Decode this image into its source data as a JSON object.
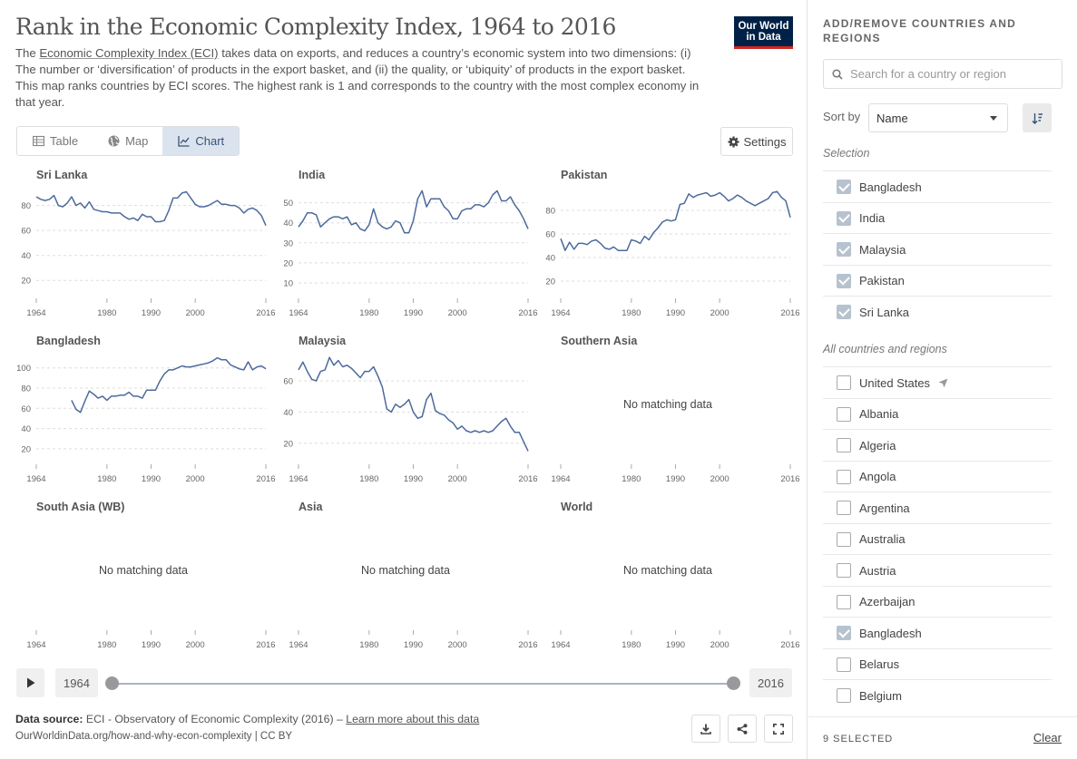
{
  "header": {
    "title": "Rank in the Economic Complexity Index, 1964 to 2016",
    "subtitle_pre": "The ",
    "subtitle_link": "Economic Complexity Index (ECI)",
    "subtitle_post": " takes data on exports, and reduces a country’s economic system into two dimensions: (i) The number or ‘diversification’ of products in the export basket, and (ii) the quality, or ‘ubiquity’ of products in the export basket. This map ranks countries by ECI scores. The highest rank is 1 and corresponds to the country with the most complex economy in that year.",
    "logo_line1": "Our World",
    "logo_line2": "in Data"
  },
  "tabs": [
    {
      "label": "Table",
      "icon": "table-icon",
      "active": false
    },
    {
      "label": "Map",
      "icon": "globe-icon",
      "active": false
    },
    {
      "label": "Chart",
      "icon": "line-chart-icon",
      "active": true
    }
  ],
  "settings_label": "Settings",
  "colors": {
    "line": "#4c6a9c",
    "accent": "#ce261e",
    "brand": "#002147"
  },
  "no_data_label": "No matching data",
  "chart_data": [
    {
      "type": "line",
      "title": "Sri Lanka",
      "yticks": [
        20,
        40,
        60,
        80
      ],
      "ylim": [
        10,
        95
      ],
      "xticks": [
        "1964",
        "1980",
        "1990",
        "2000",
        "2016"
      ],
      "xlim": [
        1964,
        2016
      ],
      "x": [
        1964,
        1965,
        1966,
        1967,
        1968,
        1969,
        1970,
        1971,
        1972,
        1973,
        1974,
        1975,
        1976,
        1977,
        1978,
        1979,
        1980,
        1981,
        1982,
        1983,
        1984,
        1985,
        1986,
        1987,
        1988,
        1989,
        1990,
        1991,
        1992,
        1993,
        1994,
        1995,
        1996,
        1997,
        1998,
        1999,
        2000,
        2001,
        2002,
        2003,
        2004,
        2005,
        2006,
        2007,
        2008,
        2009,
        2010,
        2011,
        2012,
        2013,
        2014,
        2015,
        2016
      ],
      "y": [
        87,
        85,
        84,
        85,
        88,
        80,
        79,
        82,
        87,
        80,
        82,
        78,
        83,
        77,
        76,
        75,
        75,
        74,
        74,
        74,
        71,
        69,
        70,
        68,
        73,
        71,
        71,
        67,
        67,
        68,
        76,
        86,
        86,
        90,
        91,
        86,
        81,
        79,
        79,
        80,
        82,
        84,
        81,
        81,
        80,
        80,
        78,
        74,
        77,
        78,
        76,
        72,
        64
      ]
    },
    {
      "type": "line",
      "title": "India",
      "yticks": [
        10,
        20,
        30,
        40,
        50
      ],
      "ylim": [
        5,
        58
      ],
      "xticks": [
        "1964",
        "1980",
        "1990",
        "2000",
        "2016"
      ],
      "xlim": [
        1964,
        2016
      ],
      "x": [
        1964,
        1965,
        1966,
        1967,
        1968,
        1969,
        1970,
        1971,
        1972,
        1973,
        1974,
        1975,
        1976,
        1977,
        1978,
        1979,
        1980,
        1981,
        1982,
        1983,
        1984,
        1985,
        1986,
        1987,
        1988,
        1989,
        1990,
        1991,
        1992,
        1993,
        1994,
        1995,
        1996,
        1997,
        1998,
        1999,
        2000,
        2001,
        2002,
        2003,
        2004,
        2005,
        2006,
        2007,
        2008,
        2009,
        2010,
        2011,
        2012,
        2013,
        2014,
        2015,
        2016
      ],
      "y": [
        38,
        41,
        45,
        45,
        44,
        38,
        40,
        42,
        43,
        43,
        42,
        43,
        39,
        40,
        37,
        36,
        39,
        47,
        40,
        38,
        37,
        38,
        41,
        40,
        35,
        35,
        41,
        52,
        56,
        48,
        52,
        52,
        52,
        48,
        46,
        42,
        42,
        46,
        47,
        47,
        49,
        49,
        48,
        50,
        54,
        56,
        51,
        51,
        53,
        49,
        46,
        42,
        37
      ]
    },
    {
      "type": "line",
      "title": "Pakistan",
      "yticks": [
        20,
        40,
        60,
        80
      ],
      "ylim": [
        10,
        100
      ],
      "xticks": [
        "1964",
        "1980",
        "1990",
        "2000",
        "2016"
      ],
      "xlim": [
        1964,
        2016
      ],
      "x": [
        1964,
        1965,
        1966,
        1967,
        1968,
        1969,
        1970,
        1971,
        1972,
        1973,
        1974,
        1975,
        1976,
        1977,
        1978,
        1979,
        1980,
        1981,
        1982,
        1983,
        1984,
        1985,
        1986,
        1987,
        1988,
        1989,
        1990,
        1991,
        1992,
        1993,
        1994,
        1995,
        1996,
        1997,
        1998,
        1999,
        2000,
        2001,
        2002,
        2003,
        2004,
        2005,
        2006,
        2007,
        2008,
        2009,
        2010,
        2011,
        2012,
        2013,
        2014,
        2015,
        2016
      ],
      "y": [
        56,
        46,
        53,
        47,
        52,
        52,
        51,
        54,
        55,
        52,
        48,
        47,
        49,
        46,
        46,
        46,
        55,
        54,
        52,
        58,
        55,
        61,
        65,
        70,
        72,
        71,
        72,
        85,
        86,
        94,
        91,
        93,
        94,
        95,
        92,
        93,
        95,
        92,
        88,
        90,
        93,
        91,
        88,
        86,
        84,
        86,
        88,
        90,
        95,
        96,
        91,
        88,
        74
      ]
    },
    {
      "type": "line",
      "title": "Bangladesh",
      "yticks": [
        20,
        40,
        60,
        80,
        100
      ],
      "ylim": [
        10,
        115
      ],
      "xticks": [
        "1964",
        "1980",
        "1990",
        "2000",
        "2016"
      ],
      "xlim": [
        1964,
        2016
      ],
      "x": [
        1972,
        1973,
        1974,
        1975,
        1976,
        1977,
        1978,
        1979,
        1980,
        1981,
        1982,
        1983,
        1984,
        1985,
        1986,
        1987,
        1988,
        1989,
        1990,
        1991,
        1992,
        1993,
        1994,
        1995,
        1996,
        1997,
        1998,
        1999,
        2000,
        2001,
        2002,
        2003,
        2004,
        2005,
        2006,
        2007,
        2008,
        2009,
        2010,
        2011,
        2012,
        2013,
        2014,
        2015,
        2016
      ],
      "y": [
        68,
        59,
        56,
        67,
        77,
        74,
        70,
        72,
        68,
        72,
        72,
        73,
        73,
        76,
        72,
        72,
        70,
        78,
        78,
        78,
        87,
        94,
        98,
        98,
        100,
        102,
        101,
        101,
        102,
        103,
        104,
        105,
        107,
        110,
        108,
        108,
        103,
        101,
        99,
        98,
        106,
        98,
        101,
        102,
        99
      ]
    },
    {
      "type": "line",
      "title": "Malaysia",
      "yticks": [
        20,
        40,
        60
      ],
      "ylim": [
        10,
        78
      ],
      "xticks": [
        "1964",
        "1980",
        "1990",
        "2000",
        "2016"
      ],
      "xlim": [
        1964,
        2016
      ],
      "x": [
        1964,
        1965,
        1966,
        1967,
        1968,
        1969,
        1970,
        1971,
        1972,
        1973,
        1974,
        1975,
        1976,
        1977,
        1978,
        1979,
        1980,
        1981,
        1982,
        1983,
        1984,
        1985,
        1986,
        1987,
        1988,
        1989,
        1990,
        1991,
        1992,
        1993,
        1994,
        1995,
        1996,
        1997,
        1998,
        1999,
        2000,
        2001,
        2002,
        2003,
        2004,
        2005,
        2006,
        2007,
        2008,
        2009,
        2010,
        2011,
        2012,
        2013,
        2014,
        2015,
        2016
      ],
      "y": [
        67,
        72,
        66,
        61,
        60,
        66,
        67,
        75,
        70,
        73,
        69,
        70,
        68,
        65,
        62,
        66,
        66,
        69,
        63,
        56,
        42,
        40,
        45,
        43,
        45,
        48,
        40,
        36,
        37,
        48,
        52,
        41,
        39,
        38,
        35,
        33,
        29,
        31,
        28,
        27,
        28,
        27,
        28,
        27,
        28,
        31,
        34,
        36,
        31,
        27,
        27,
        21,
        15
      ]
    }
  ],
  "empty_panels": [
    {
      "title": "Southern Asia"
    },
    {
      "title": "South Asia (WB)"
    },
    {
      "title": "Asia"
    },
    {
      "title": "World"
    }
  ],
  "timeline": {
    "start_year": "1964",
    "end_year": "2016"
  },
  "footer": {
    "source_label": "Data source:",
    "source_text": " ECI - Observatory of Economic Complexity (2016) – ",
    "source_link": "Learn more about this data",
    "url": "OurWorldinData.org/how-and-why-econ-complexity | CC BY"
  },
  "sidebar": {
    "header": "ADD/REMOVE COUNTRIES AND REGIONS",
    "search_placeholder": "Search for a country or region",
    "sort_label": "Sort by",
    "sort_value": "Name",
    "selection_label": "Selection",
    "selected": [
      "Bangladesh",
      "India",
      "Malaysia",
      "Pakistan",
      "Sri Lanka"
    ],
    "all_label": "All countries and regions",
    "all": [
      {
        "name": "United States",
        "checked": false,
        "current_location": true
      },
      {
        "name": "Albania",
        "checked": false
      },
      {
        "name": "Algeria",
        "checked": false
      },
      {
        "name": "Angola",
        "checked": false
      },
      {
        "name": "Argentina",
        "checked": false
      },
      {
        "name": "Australia",
        "checked": false
      },
      {
        "name": "Austria",
        "checked": false
      },
      {
        "name": "Azerbaijan",
        "checked": false
      },
      {
        "name": "Bangladesh",
        "checked": true
      },
      {
        "name": "Belarus",
        "checked": false
      },
      {
        "name": "Belgium",
        "checked": false
      }
    ],
    "selected_count": "9 SELECTED",
    "clear_label": "Clear"
  }
}
